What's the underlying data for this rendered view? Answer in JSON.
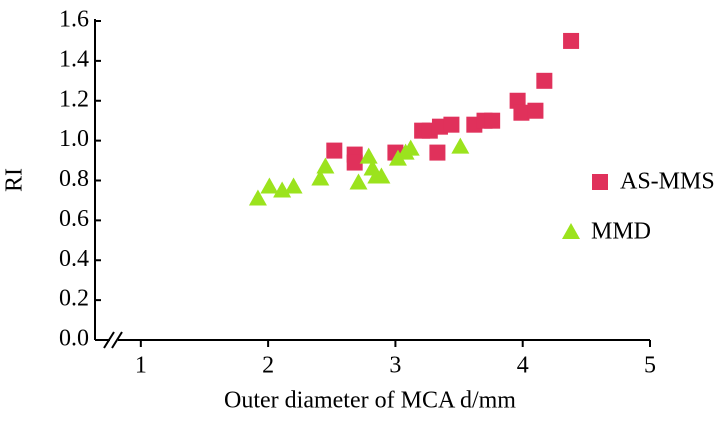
{
  "chart_data": {
    "type": "scatter",
    "x_label": "Outer diameter of MCA d/mm",
    "y_label": "RI",
    "xlim": [
      0.64,
      5
    ],
    "xticks": [
      1,
      2,
      3,
      4,
      5
    ],
    "ylim": [
      0,
      1.6
    ],
    "yticks": [
      {
        "value": 0,
        "label": "0.0"
      },
      0.2,
      0.4,
      0.6,
      0.8,
      {
        "value": 1,
        "label": "1.0"
      },
      1.2,
      1.4,
      1.6
    ],
    "legend": "right",
    "series": [
      {
        "name": "AS-MMS",
        "color": "#e0315b",
        "marker": "square",
        "x": [
          2.52,
          2.68,
          2.68,
          3.0,
          3.21,
          3.27,
          3.35,
          3.44,
          3.33,
          3.62,
          3.7,
          3.76,
          3.96,
          3.99,
          4.1,
          4.17,
          4.38
        ],
        "values": [
          0.95,
          0.93,
          0.89,
          0.94,
          1.05,
          1.05,
          1.07,
          1.08,
          0.94,
          1.08,
          1.1,
          1.1,
          1.2,
          1.14,
          1.15,
          1.3,
          1.5
        ]
      },
      {
        "name": "MMD",
        "color": "#9be31d",
        "marker": "triangle",
        "x": [
          1.92,
          2.01,
          2.11,
          2.2,
          2.41,
          2.45,
          2.71,
          2.79,
          2.82,
          2.85,
          2.89,
          3.02,
          3.08,
          3.12,
          3.51
        ],
        "values": [
          0.71,
          0.77,
          0.75,
          0.77,
          0.81,
          0.87,
          0.79,
          0.92,
          0.86,
          0.82,
          0.82,
          0.91,
          0.94,
          0.96,
          0.97
        ]
      }
    ]
  }
}
